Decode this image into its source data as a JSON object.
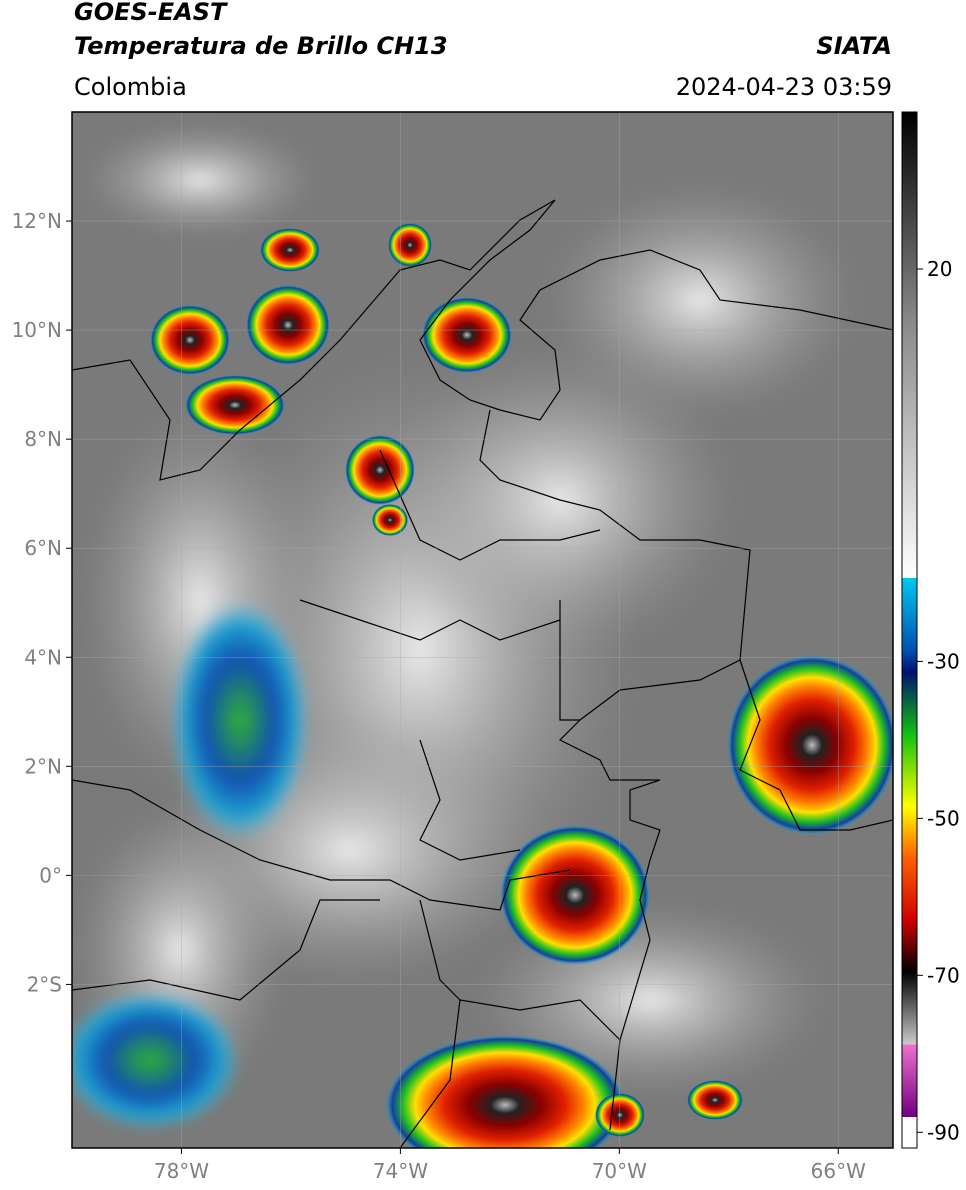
{
  "header": {
    "satellite": "GOES-EAST",
    "product": "Temperatura de Brillo CH13",
    "source": "SIATA",
    "region": "Colombia",
    "datetime": "2024-04-23 03:59"
  },
  "map": {
    "xlim": [
      -80,
      -65
    ],
    "ylim": [
      -5,
      14
    ],
    "xticks": [
      {
        "value": -78,
        "label": "78°W"
      },
      {
        "value": -74,
        "label": "74°W"
      },
      {
        "value": -70,
        "label": "70°W"
      },
      {
        "value": -66,
        "label": "66°W"
      }
    ],
    "yticks": [
      {
        "value": 12,
        "label": "12°N"
      },
      {
        "value": 10,
        "label": "10°N"
      },
      {
        "value": 8,
        "label": "8°N"
      },
      {
        "value": 6,
        "label": "6°N"
      },
      {
        "value": 4,
        "label": "4°N"
      },
      {
        "value": 2,
        "label": "2°N"
      },
      {
        "value": 0,
        "label": "0°"
      },
      {
        "value": -2,
        "label": "2°S"
      }
    ],
    "grid": true
  },
  "colorbar": {
    "lim": [
      -92,
      40
    ],
    "ticks": [
      20,
      -30,
      -50,
      -70,
      -90
    ]
  }
}
